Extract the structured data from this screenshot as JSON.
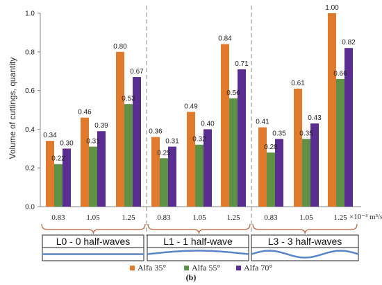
{
  "chart_data": {
    "type": "bar",
    "categories": [
      "0.83",
      "1.05",
      "1.25",
      "0.83",
      "1.05",
      "1.25",
      "0.83",
      "1.05",
      "1.25"
    ],
    "groups": [
      "L0 - 0 half-waves",
      "L1 - 1 half-wave",
      "L3 - 3 half-waves"
    ],
    "series": [
      {
        "name": "Alfa 35°",
        "color": "#E07B2E",
        "values": [
          0.34,
          0.46,
          0.8,
          0.36,
          0.49,
          0.84,
          0.41,
          0.61,
          1.0
        ],
        "labels": [
          "0.34",
          "0.46",
          "0.80",
          "0.36",
          "0.49",
          "0.84",
          "0.41",
          "0.61",
          "1.00"
        ]
      },
      {
        "name": "Alfa 55°",
        "color": "#5E9146",
        "values": [
          0.22,
          0.31,
          0.53,
          0.25,
          0.32,
          0.56,
          0.28,
          0.35,
          0.66
        ],
        "labels": [
          "0.22",
          "0.31",
          "0.53",
          "0.25",
          "0.32",
          "0.56",
          "0.28",
          "0.35",
          "0.66"
        ]
      },
      {
        "name": "Alfa 70°",
        "color": "#5A2D91",
        "values": [
          0.3,
          0.39,
          0.67,
          0.31,
          0.4,
          0.71,
          0.35,
          0.43,
          0.82
        ],
        "labels": [
          "0.30",
          "0.39",
          "0.67",
          "0.31",
          "0.40",
          "0.71",
          "0.35",
          "0.43",
          "0.82"
        ]
      }
    ],
    "ylabel": "Volume of cuttings, quantity",
    "xunit": "×10⁻³ m³/s",
    "ylim": [
      0,
      1.0
    ],
    "yticks": [
      "0.0",
      "0.2",
      "0.4",
      "0.6",
      "0.8",
      "1.0"
    ],
    "grid": false,
    "legend_position": "bottom",
    "caption": "(b)"
  }
}
